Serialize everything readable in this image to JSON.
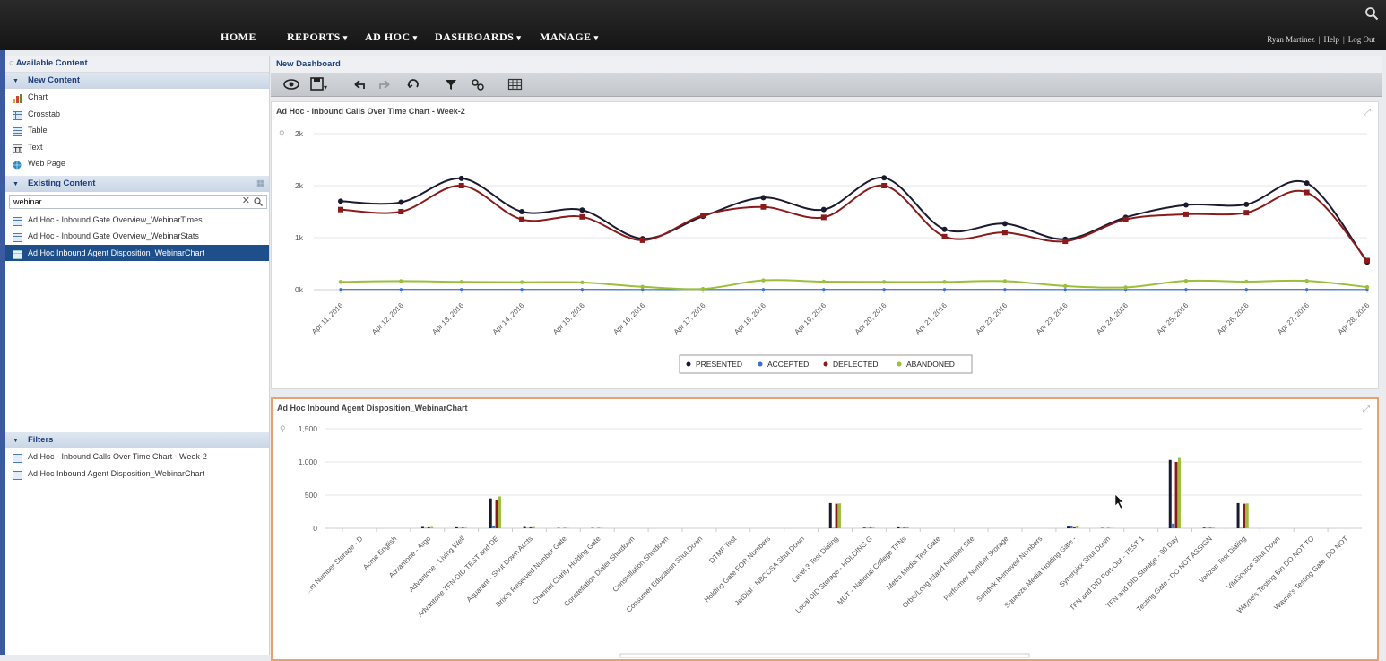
{
  "nav": {
    "items": [
      {
        "label": "HOME",
        "dropdown": false
      },
      {
        "label": "REPORTS",
        "dropdown": true
      },
      {
        "label": "AD HOC",
        "dropdown": true
      },
      {
        "label": "DASHBOARDS",
        "dropdown": true
      },
      {
        "label": "MANAGE",
        "dropdown": true
      }
    ],
    "user": "Ryan Martinez",
    "help": "Help",
    "logout": "Log Out",
    "separator": "|"
  },
  "left": {
    "header": "Available Content",
    "new_content": {
      "title": "New Content",
      "items": [
        {
          "label": "Chart",
          "icon": "chart-icon"
        },
        {
          "label": "Crosstab",
          "icon": "crosstab-icon"
        },
        {
          "label": "Table",
          "icon": "table-icon"
        },
        {
          "label": "Text",
          "icon": "text-icon"
        },
        {
          "label": "Web Page",
          "icon": "globe-icon"
        }
      ]
    },
    "existing_content": {
      "title": "Existing Content",
      "search_value": "webinar",
      "items": [
        {
          "label": "Ad Hoc - Inbound Gate Overview_WebinarTimes",
          "selected": false
        },
        {
          "label": "Ad Hoc - Inbound Gate Overview_WebinarStats",
          "selected": false
        },
        {
          "label": "Ad Hoc Inbound Agent Disposition_WebinarChart",
          "selected": true
        }
      ]
    },
    "filters": {
      "title": "Filters",
      "items": [
        {
          "label": "Ad Hoc - Inbound Calls Over Time Chart - Week-2"
        },
        {
          "label": "Ad Hoc Inbound Agent Disposition_WebinarChart"
        }
      ]
    }
  },
  "dashboard": {
    "title": "New Dashboard",
    "toolbar": [
      "preview-icon",
      "save-icon",
      "undo-icon",
      "redo-icon",
      "refresh-icon",
      "filter-icon",
      "link-icon",
      "grid-icon"
    ]
  },
  "colors": {
    "presented": "#1a1a2e",
    "accepted": "#3a6fd0",
    "deflected": "#8b1a1a",
    "abandoned": "#9bbf3a"
  },
  "chart_data": [
    {
      "type": "line",
      "title": "Ad Hoc - Inbound Calls Over Time Chart - Week-2",
      "x": [
        "Apr 11, 2016",
        "Apr 12, 2016",
        "Apr 13, 2016",
        "Apr 14, 2016",
        "Apr 15, 2016",
        "Apr 16, 2016",
        "Apr 17, 2016",
        "Apr 18, 2016",
        "Apr 19, 2016",
        "Apr 20, 2016",
        "Apr 21, 2016",
        "Apr 22, 2016",
        "Apr 23, 2016",
        "Apr 24, 2016",
        "Apr 25, 2016",
        "Apr 26, 2016",
        "Apr 27, 2016",
        "Apr 28, 2016"
      ],
      "yticks": [
        "0k",
        "1k",
        "2k",
        "2k"
      ],
      "ylim": [
        0,
        3000
      ],
      "series": [
        {
          "name": "PRESENTED",
          "values": [
            1700,
            1680,
            2140,
            1500,
            1530,
            980,
            1410,
            1770,
            1540,
            2150,
            1160,
            1270,
            970,
            1390,
            1630,
            1640,
            2050,
            530
          ]
        },
        {
          "name": "ACCEPTED",
          "values": [
            5,
            5,
            5,
            5,
            5,
            3,
            3,
            5,
            5,
            5,
            5,
            5,
            3,
            3,
            5,
            5,
            5,
            3
          ]
        },
        {
          "name": "DEFLECTED",
          "values": [
            1540,
            1500,
            2000,
            1350,
            1400,
            950,
            1430,
            1590,
            1390,
            2000,
            1020,
            1100,
            930,
            1350,
            1450,
            1480,
            1870,
            560
          ]
        },
        {
          "name": "ABANDONED",
          "values": [
            150,
            165,
            150,
            145,
            140,
            55,
            15,
            180,
            155,
            150,
            150,
            165,
            70,
            45,
            170,
            155,
            170,
            50
          ]
        }
      ],
      "grid": true,
      "legend": "bottom"
    },
    {
      "type": "bar",
      "title": "Ad Hoc Inbound Agent Disposition_WebinarChart",
      "categories": [
        "...m Number Storage - D",
        "Acme English",
        "Advantone - Argo",
        "Advantone - Living Well",
        "Advantone TFN-DID TEST and DE",
        "Aquarant - Shut Down Accts",
        "Brixi's Reserved Number Gate",
        "Channel Clarity Holding Gate",
        "Constellation Dialer Shutdown",
        "Constellation Shutdown",
        "Consumer Education Shut Down",
        "DTMF Test",
        "Holding Gate FOR Numbers",
        "JetDial - NBCCSA Shut Down",
        "Level 3 Test Dialing",
        "Local DID Storage - HOLDING G",
        "MDT - National College TFNs",
        "Metro Media Test Gate",
        "Orbis/Long Island Number Site",
        "Performex Number Storage",
        "Sandvik Removed Numbers",
        "Squeeze Media Holding Gate -",
        "Synergixx Shut Down",
        "TFN and DID Port-Out - TEST 1",
        "TFN and DID Storage - 90 Day",
        "Testing Gate - DO NOT ASSIGN",
        "Verizon Test Dialing",
        "VitaSource Shut Down",
        "Wayne's Testing Bin DO NOT TO",
        "Wayne's Testing Gate, DO NOT"
      ],
      "yticks": [
        "0",
        "500",
        "1,000",
        "1,500"
      ],
      "ylim": [
        0,
        1500
      ],
      "series": [
        {
          "name": "PRESENTED",
          "values": [
            0,
            0,
            20,
            15,
            450,
            20,
            5,
            5,
            0,
            0,
            0,
            0,
            0,
            0,
            380,
            10,
            15,
            0,
            0,
            0,
            0,
            25,
            5,
            0,
            1030,
            10,
            380,
            0,
            0,
            0
          ]
        },
        {
          "name": "ACCEPTED",
          "values": [
            0,
            0,
            5,
            5,
            40,
            5,
            0,
            0,
            0,
            0,
            0,
            0,
            0,
            0,
            5,
            5,
            5,
            0,
            0,
            0,
            0,
            35,
            0,
            0,
            70,
            5,
            5,
            0,
            0,
            0
          ]
        },
        {
          "name": "DEFLECTED",
          "values": [
            0,
            0,
            15,
            10,
            420,
            15,
            5,
            5,
            0,
            0,
            0,
            0,
            0,
            0,
            370,
            10,
            10,
            0,
            0,
            0,
            0,
            15,
            5,
            0,
            1000,
            8,
            370,
            0,
            0,
            0
          ]
        },
        {
          "name": "ABANDONED",
          "values": [
            0,
            0,
            20,
            10,
            480,
            20,
            5,
            5,
            0,
            0,
            0,
            0,
            0,
            0,
            375,
            10,
            15,
            0,
            0,
            0,
            0,
            30,
            5,
            0,
            1060,
            10,
            375,
            0,
            0,
            0
          ]
        }
      ],
      "grid": true
    }
  ]
}
